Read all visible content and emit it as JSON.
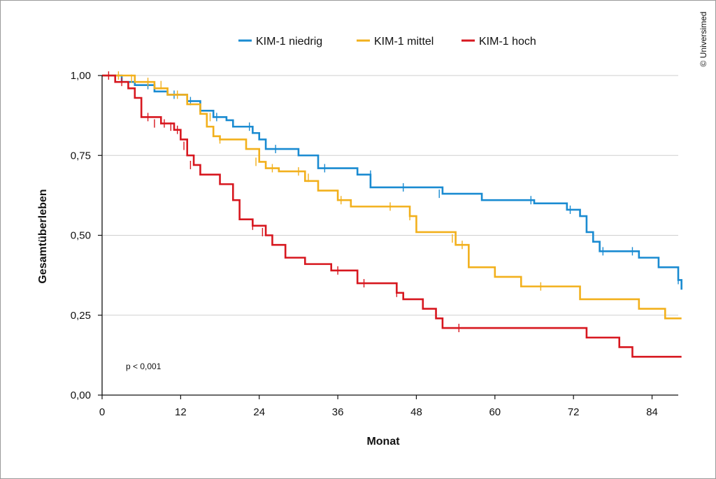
{
  "chart_data": {
    "type": "line",
    "title": "",
    "xlabel": "Monat",
    "ylabel": "Gesamtüberleben",
    "xlim": [
      0,
      88
    ],
    "ylim": [
      0,
      1
    ],
    "xticks": [
      0,
      12,
      24,
      36,
      48,
      60,
      72,
      84
    ],
    "yticks": [
      0,
      0.25,
      0.5,
      0.75,
      1
    ],
    "ytick_labels": [
      "0,00",
      "0,25",
      "0,50",
      "0,75",
      "1,00"
    ],
    "grid": "horizontal",
    "legend_position": "top-center",
    "annotation": "p < 0,001",
    "credit": "© Universimed",
    "series": [
      {
        "name": "KIM-1 niedrig",
        "color": "#1a8bd1",
        "steps": [
          [
            0,
            1.0
          ],
          [
            3,
            0.98
          ],
          [
            5,
            0.97
          ],
          [
            8,
            0.95
          ],
          [
            10,
            0.94
          ],
          [
            13,
            0.92
          ],
          [
            15,
            0.89
          ],
          [
            17,
            0.87
          ],
          [
            19,
            0.86
          ],
          [
            20,
            0.84
          ],
          [
            23,
            0.82
          ],
          [
            24,
            0.8
          ],
          [
            25,
            0.77
          ],
          [
            30,
            0.75
          ],
          [
            33,
            0.71
          ],
          [
            39,
            0.69
          ],
          [
            41,
            0.65
          ],
          [
            52,
            0.63
          ],
          [
            58,
            0.61
          ],
          [
            66,
            0.6
          ],
          [
            71,
            0.58
          ],
          [
            73,
            0.56
          ],
          [
            74,
            0.51
          ],
          [
            75,
            0.48
          ],
          [
            76,
            0.45
          ],
          [
            82,
            0.43
          ],
          [
            85,
            0.4
          ],
          [
            88,
            0.36
          ],
          [
            88.5,
            0.33
          ],
          [
            88.5,
            0.33
          ]
        ],
        "censors": [
          [
            2,
            0.99
          ],
          [
            7,
            0.97
          ],
          [
            11,
            0.94
          ],
          [
            13.5,
            0.92
          ],
          [
            17.5,
            0.87
          ],
          [
            22.5,
            0.84
          ],
          [
            26.5,
            0.77
          ],
          [
            34,
            0.71
          ],
          [
            41,
            0.69
          ],
          [
            46,
            0.65
          ],
          [
            51.5,
            0.63
          ],
          [
            65.5,
            0.61
          ],
          [
            71.5,
            0.58
          ],
          [
            76.5,
            0.45
          ],
          [
            81,
            0.45
          ],
          [
            88,
            0.36
          ]
        ]
      },
      {
        "name": "KIM-1 mittel",
        "color": "#f2b01c",
        "steps": [
          [
            0,
            1.0
          ],
          [
            5,
            0.98
          ],
          [
            8,
            0.96
          ],
          [
            10,
            0.94
          ],
          [
            13,
            0.91
          ],
          [
            15,
            0.88
          ],
          [
            16,
            0.84
          ],
          [
            17,
            0.81
          ],
          [
            18,
            0.8
          ],
          [
            22,
            0.77
          ],
          [
            24,
            0.73
          ],
          [
            25,
            0.71
          ],
          [
            27,
            0.7
          ],
          [
            31,
            0.67
          ],
          [
            33,
            0.64
          ],
          [
            36,
            0.61
          ],
          [
            38,
            0.59
          ],
          [
            47,
            0.56
          ],
          [
            48,
            0.51
          ],
          [
            54,
            0.47
          ],
          [
            56,
            0.4
          ],
          [
            60,
            0.37
          ],
          [
            64,
            0.34
          ],
          [
            73,
            0.3
          ],
          [
            82,
            0.27
          ],
          [
            86,
            0.24
          ],
          [
            88.5,
            0.24
          ]
        ],
        "censors": [
          [
            2.5,
            1.0
          ],
          [
            4.5,
            0.99
          ],
          [
            7,
            0.98
          ],
          [
            9,
            0.97
          ],
          [
            11.5,
            0.94
          ],
          [
            16.5,
            0.87
          ],
          [
            18,
            0.8
          ],
          [
            23.5,
            0.73
          ],
          [
            26,
            0.71
          ],
          [
            30,
            0.7
          ],
          [
            31.5,
            0.68
          ],
          [
            36.5,
            0.61
          ],
          [
            44,
            0.59
          ],
          [
            47,
            0.56
          ],
          [
            53.5,
            0.49
          ],
          [
            55,
            0.47
          ],
          [
            67,
            0.34
          ]
        ]
      },
      {
        "name": "KIM-1 hoch",
        "color": "#d7171f",
        "steps": [
          [
            0,
            1.0
          ],
          [
            2,
            0.98
          ],
          [
            4,
            0.96
          ],
          [
            5,
            0.93
          ],
          [
            6,
            0.87
          ],
          [
            9,
            0.85
          ],
          [
            11,
            0.83
          ],
          [
            12,
            0.8
          ],
          [
            13,
            0.75
          ],
          [
            14,
            0.72
          ],
          [
            15,
            0.69
          ],
          [
            18,
            0.66
          ],
          [
            20,
            0.61
          ],
          [
            21,
            0.55
          ],
          [
            23,
            0.53
          ],
          [
            25,
            0.5
          ],
          [
            26,
            0.47
          ],
          [
            28,
            0.43
          ],
          [
            31,
            0.41
          ],
          [
            35,
            0.39
          ],
          [
            39,
            0.35
          ],
          [
            45,
            0.32
          ],
          [
            46,
            0.3
          ],
          [
            49,
            0.27
          ],
          [
            51,
            0.24
          ],
          [
            52,
            0.21
          ],
          [
            74,
            0.18
          ],
          [
            79,
            0.15
          ],
          [
            81,
            0.12
          ],
          [
            88.5,
            0.12
          ]
        ],
        "censors": [
          [
            1,
            1.0
          ],
          [
            3,
            0.98
          ],
          [
            7,
            0.87
          ],
          [
            8,
            0.85
          ],
          [
            9.5,
            0.85
          ],
          [
            10.5,
            0.84
          ],
          [
            11.5,
            0.83
          ],
          [
            12.5,
            0.78
          ],
          [
            13.5,
            0.72
          ],
          [
            23,
            0.53
          ],
          [
            24.5,
            0.51
          ],
          [
            36,
            0.39
          ],
          [
            40,
            0.35
          ],
          [
            45,
            0.32
          ],
          [
            54.5,
            0.21
          ]
        ]
      }
    ]
  }
}
